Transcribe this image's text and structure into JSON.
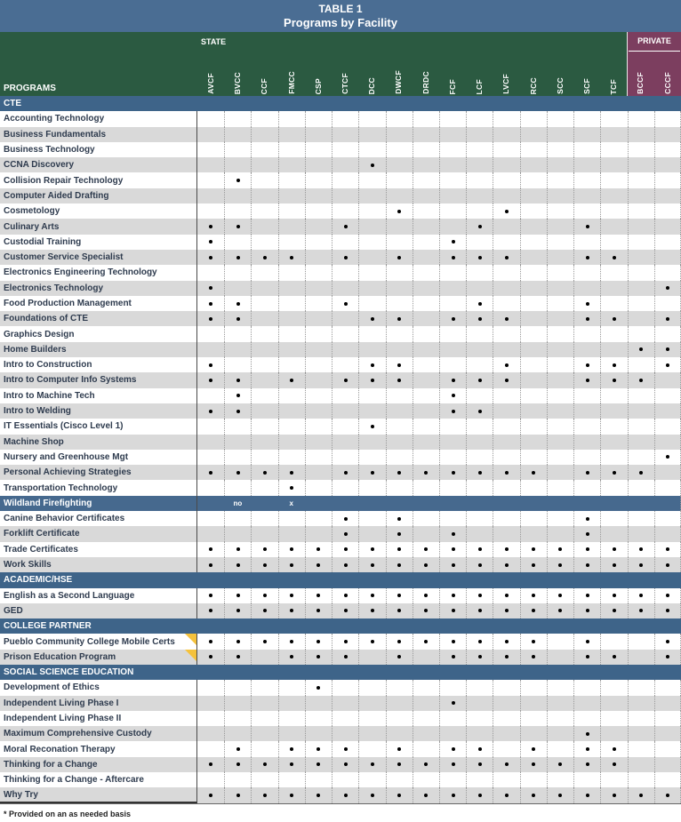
{
  "title": {
    "line1": "TABLE 1",
    "line2": "Programs by Facility"
  },
  "header": {
    "programs_label": "PROGRAMS",
    "state_label": "STATE",
    "private_label": "PRIVATE",
    "facilities": [
      "AVCF",
      "BVCC",
      "CCF",
      "FMCC",
      "CSP",
      "CTCF",
      "DCC",
      "DWCF",
      "DRDC",
      "FCF",
      "LCF",
      "LVCF",
      "RCC",
      "SCC",
      "SCF",
      "TCF",
      "BCCF",
      "CCCF"
    ],
    "private_facilities": [
      "BCCF",
      "CCCF"
    ]
  },
  "colors": {
    "title_band": "#4a6d93",
    "state_green": "#2b5a41",
    "private_maroon": "#7c3e5f",
    "section_blue": "#3e6489",
    "special_row_blue": "#46698e",
    "stripe_gray": "#d9d9d9",
    "flag_yellow": "#f5c23c",
    "dot_black": "#000000"
  },
  "rows": [
    {
      "type": "section",
      "label": "CTE"
    },
    {
      "type": "program",
      "label": "Accounting Technology",
      "dots": []
    },
    {
      "type": "program",
      "label": "Business Fundamentals",
      "dots": []
    },
    {
      "type": "program",
      "label": "Business Technology",
      "dots": []
    },
    {
      "type": "program",
      "label": "CCNA Discovery",
      "dots": [
        "DCC"
      ]
    },
    {
      "type": "program",
      "label": "Collision Repair Technology",
      "dots": [
        "BVCC"
      ]
    },
    {
      "type": "program",
      "label": "Computer Aided Drafting",
      "dots": []
    },
    {
      "type": "program",
      "label": "Cosmetology",
      "dots": [
        "DWCF",
        "LVCF"
      ]
    },
    {
      "type": "program",
      "label": "Culinary Arts",
      "dots": [
        "AVCF",
        "BVCC",
        "CTCF",
        "LCF",
        "SCF"
      ]
    },
    {
      "type": "program",
      "label": "Custodial Training",
      "dots": [
        "AVCF",
        "FCF"
      ]
    },
    {
      "type": "program",
      "label": "Customer Service Specialist",
      "dots": [
        "AVCF",
        "BVCC",
        "CCF",
        "FMCC",
        "CTCF",
        "DWCF",
        "FCF",
        "LCF",
        "LVCF",
        "SCF",
        "TCF"
      ]
    },
    {
      "type": "program",
      "label": "Electronics Engineering Technology",
      "dots": []
    },
    {
      "type": "program",
      "label": "Electronics Technology",
      "dots": [
        "AVCF",
        "CCCF"
      ]
    },
    {
      "type": "program",
      "label": "Food Production Management",
      "dots": [
        "AVCF",
        "BVCC",
        "CTCF",
        "LCF",
        "SCF"
      ]
    },
    {
      "type": "program",
      "label": "Foundations of CTE",
      "dots": [
        "AVCF",
        "BVCC",
        "DCC",
        "DWCF",
        "FCF",
        "LCF",
        "LVCF",
        "SCF",
        "TCF",
        "CCCF"
      ]
    },
    {
      "type": "program",
      "label": "Graphics Design",
      "dots": []
    },
    {
      "type": "program",
      "label": "Home Builders",
      "dots": [
        "BCCF",
        "CCCF"
      ]
    },
    {
      "type": "program",
      "label": "Intro to Construction",
      "dots": [
        "AVCF",
        "DCC",
        "DWCF",
        "LVCF",
        "SCF",
        "TCF",
        "CCCF"
      ]
    },
    {
      "type": "program",
      "label": "Intro to Computer Info Systems",
      "dots": [
        "AVCF",
        "BVCC",
        "FMCC",
        "CTCF",
        "DCC",
        "DWCF",
        "FCF",
        "LCF",
        "LVCF",
        "SCF",
        "TCF",
        "BCCF"
      ]
    },
    {
      "type": "program",
      "label": "Intro to Machine Tech",
      "dots": [
        "BVCC",
        "FCF"
      ]
    },
    {
      "type": "program",
      "label": "Intro to Welding",
      "dots": [
        "AVCF",
        "BVCC",
        "FCF",
        "LCF"
      ]
    },
    {
      "type": "program",
      "label": "IT Essentials (Cisco Level 1)",
      "dots": [
        "DCC"
      ]
    },
    {
      "type": "program",
      "label": "Machine Shop",
      "dots": []
    },
    {
      "type": "program",
      "label": "Nursery and Greenhouse Mgt",
      "dots": [
        "CCCF"
      ]
    },
    {
      "type": "program",
      "label": "Personal Achieving Strategies",
      "dots": [
        "AVCF",
        "BVCC",
        "CCF",
        "FMCC",
        "CTCF",
        "DCC",
        "DWCF",
        "DRDC",
        "FCF",
        "LCF",
        "LVCF",
        "RCC",
        "SCF",
        "TCF",
        "BCCF"
      ]
    },
    {
      "type": "program",
      "label": "Transportation Technology",
      "dots": [
        "FMCC"
      ]
    },
    {
      "type": "special",
      "label": "Wildland Firefighting",
      "cells": {
        "BVCC": "no",
        "FMCC": "x"
      }
    },
    {
      "type": "program",
      "label": "Canine Behavior Certificates",
      "dots": [
        "CTCF",
        "DWCF",
        "SCF"
      ]
    },
    {
      "type": "program",
      "label": "Forklift Certificate",
      "dots": [
        "CTCF",
        "DWCF",
        "FCF",
        "SCF"
      ]
    },
    {
      "type": "program",
      "label": "Trade Certificates",
      "dots": [
        "AVCF",
        "BVCC",
        "CCF",
        "FMCC",
        "CSP",
        "CTCF",
        "DCC",
        "DWCF",
        "DRDC",
        "FCF",
        "LCF",
        "LVCF",
        "RCC",
        "SCC",
        "SCF",
        "TCF",
        "BCCF",
        "CCCF"
      ]
    },
    {
      "type": "program",
      "label": "Work Skills",
      "dots": [
        "AVCF",
        "BVCC",
        "CCF",
        "FMCC",
        "CSP",
        "CTCF",
        "DCC",
        "DWCF",
        "DRDC",
        "FCF",
        "LCF",
        "LVCF",
        "RCC",
        "SCC",
        "SCF",
        "TCF",
        "BCCF",
        "CCCF"
      ]
    },
    {
      "type": "section",
      "label": "ACADEMIC/HSE"
    },
    {
      "type": "program",
      "label": "English as a Second Language",
      "dots": [
        "AVCF",
        "BVCC",
        "CCF",
        "FMCC",
        "CSP",
        "CTCF",
        "DCC",
        "DWCF",
        "DRDC",
        "FCF",
        "LCF",
        "LVCF",
        "RCC",
        "SCC",
        "SCF",
        "TCF",
        "BCCF",
        "CCCF"
      ]
    },
    {
      "type": "program",
      "label": "GED",
      "dots": [
        "AVCF",
        "BVCC",
        "CCF",
        "FMCC",
        "CSP",
        "CTCF",
        "DCC",
        "DWCF",
        "DRDC",
        "FCF",
        "LCF",
        "LVCF",
        "RCC",
        "SCC",
        "SCF",
        "TCF",
        "BCCF",
        "CCCF"
      ]
    },
    {
      "type": "section",
      "label": "COLLEGE PARTNER"
    },
    {
      "type": "program",
      "label": "Pueblo Community College Mobile Certs",
      "flag": true,
      "dots": [
        "AVCF",
        "BVCC",
        "CCF",
        "FMCC",
        "CSP",
        "CTCF",
        "DCC",
        "DWCF",
        "DRDC",
        "FCF",
        "LCF",
        "LVCF",
        "RCC",
        "SCF",
        "CCCF"
      ]
    },
    {
      "type": "program",
      "label": "Prison Education Program",
      "flag": true,
      "dots": [
        "AVCF",
        "BVCC",
        "FMCC",
        "CSP",
        "CTCF",
        "DWCF",
        "FCF",
        "LCF",
        "LVCF",
        "RCC",
        "SCF",
        "TCF",
        "CCCF"
      ]
    },
    {
      "type": "section",
      "label": "SOCIAL SCIENCE EDUCATION"
    },
    {
      "type": "program",
      "label": "Development of Ethics",
      "dots": [
        "CSP"
      ]
    },
    {
      "type": "program",
      "label": "Independent Living Phase I",
      "dots": [
        "FCF"
      ]
    },
    {
      "type": "program",
      "label": "Independent Living Phase II",
      "dots": []
    },
    {
      "type": "program",
      "label": "Maximum Comprehensive Custody",
      "dots": [
        "SCF"
      ]
    },
    {
      "type": "program",
      "label": "Moral Reconation Therapy",
      "dots": [
        "BVCC",
        "FMCC",
        "CSP",
        "CTCF",
        "DWCF",
        "FCF",
        "LCF",
        "RCC",
        "SCF",
        "TCF"
      ]
    },
    {
      "type": "program",
      "label": "Thinking for a Change",
      "dots": [
        "AVCF",
        "BVCC",
        "CCF",
        "FMCC",
        "CSP",
        "CTCF",
        "DCC",
        "DWCF",
        "DRDC",
        "FCF",
        "LCF",
        "LVCF",
        "RCC",
        "SCC",
        "SCF",
        "TCF"
      ]
    },
    {
      "type": "program",
      "label": "Thinking for a Change - Aftercare",
      "dots": []
    },
    {
      "type": "program",
      "label": "Why Try",
      "dots": [
        "AVCF",
        "BVCC",
        "CCF",
        "FMCC",
        "CSP",
        "CTCF",
        "DCC",
        "DWCF",
        "DRDC",
        "FCF",
        "LCF",
        "LVCF",
        "RCC",
        "SCC",
        "SCF",
        "TCF",
        "BCCF",
        "CCCF"
      ]
    }
  ],
  "footnote": "* Provided on an as needed basis"
}
